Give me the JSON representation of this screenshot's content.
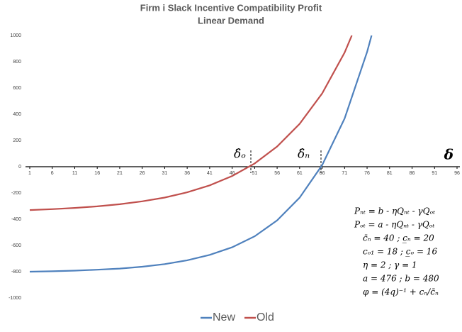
{
  "chart_data": {
    "type": "line",
    "title": "Firm i Slack Incentive Compatibility Profit",
    "subtitle": "Linear Demand",
    "x_label": "δ",
    "annotations": [
      "δ̂ₒ",
      "δ̂ₙ"
    ],
    "equations": [
      "Pₙₜ = b - ηQₙₜ - γQₒₜ",
      "Pₒₜ = a - ηQₙₜ - γQₒₜ",
      "c̄ₙ = 40 ; c̲ₙ = 20",
      "cₒ₁ = 18 ; c̲ₒ = 16",
      "η = 2 ; γ = 1",
      "a = 476 ; b = 480",
      "φ = (4q)⁻¹ + cₙ/c̄ₙ"
    ],
    "series": [
      {
        "name": "New",
        "color": "#4f81bd",
        "x": [
          1,
          6,
          11,
          16,
          21,
          26,
          31,
          36,
          41,
          46,
          51,
          56,
          61,
          66,
          71,
          76,
          77
        ],
        "values": [
          -800,
          -797,
          -792,
          -785,
          -776,
          -762,
          -742,
          -713,
          -672,
          -614,
          -530,
          -409,
          -236,
          12,
          367,
          875,
          1000
        ]
      },
      {
        "name": "Old",
        "color": "#c0504d",
        "x": [
          1,
          6,
          11,
          16,
          21,
          26,
          31,
          36,
          41,
          46,
          51,
          56,
          61,
          66,
          71,
          72.6
        ],
        "values": [
          -330,
          -323,
          -314,
          -302,
          -286,
          -264,
          -235,
          -195,
          -142,
          -71,
          25,
          154,
          326,
          558,
          869,
          1000
        ]
      }
    ],
    "xlim": [
      1,
      96
    ],
    "xticks": [
      1,
      6,
      11,
      16,
      21,
      26,
      31,
      36,
      41,
      46,
      51,
      56,
      61,
      66,
      71,
      76,
      81,
      86,
      91,
      96
    ],
    "ylim": [
      -1000,
      1000
    ],
    "yticks": [
      -1000,
      -800,
      -600,
      -400,
      -200,
      0,
      200,
      400,
      600,
      800,
      1000
    ],
    "legend": "bottom"
  }
}
